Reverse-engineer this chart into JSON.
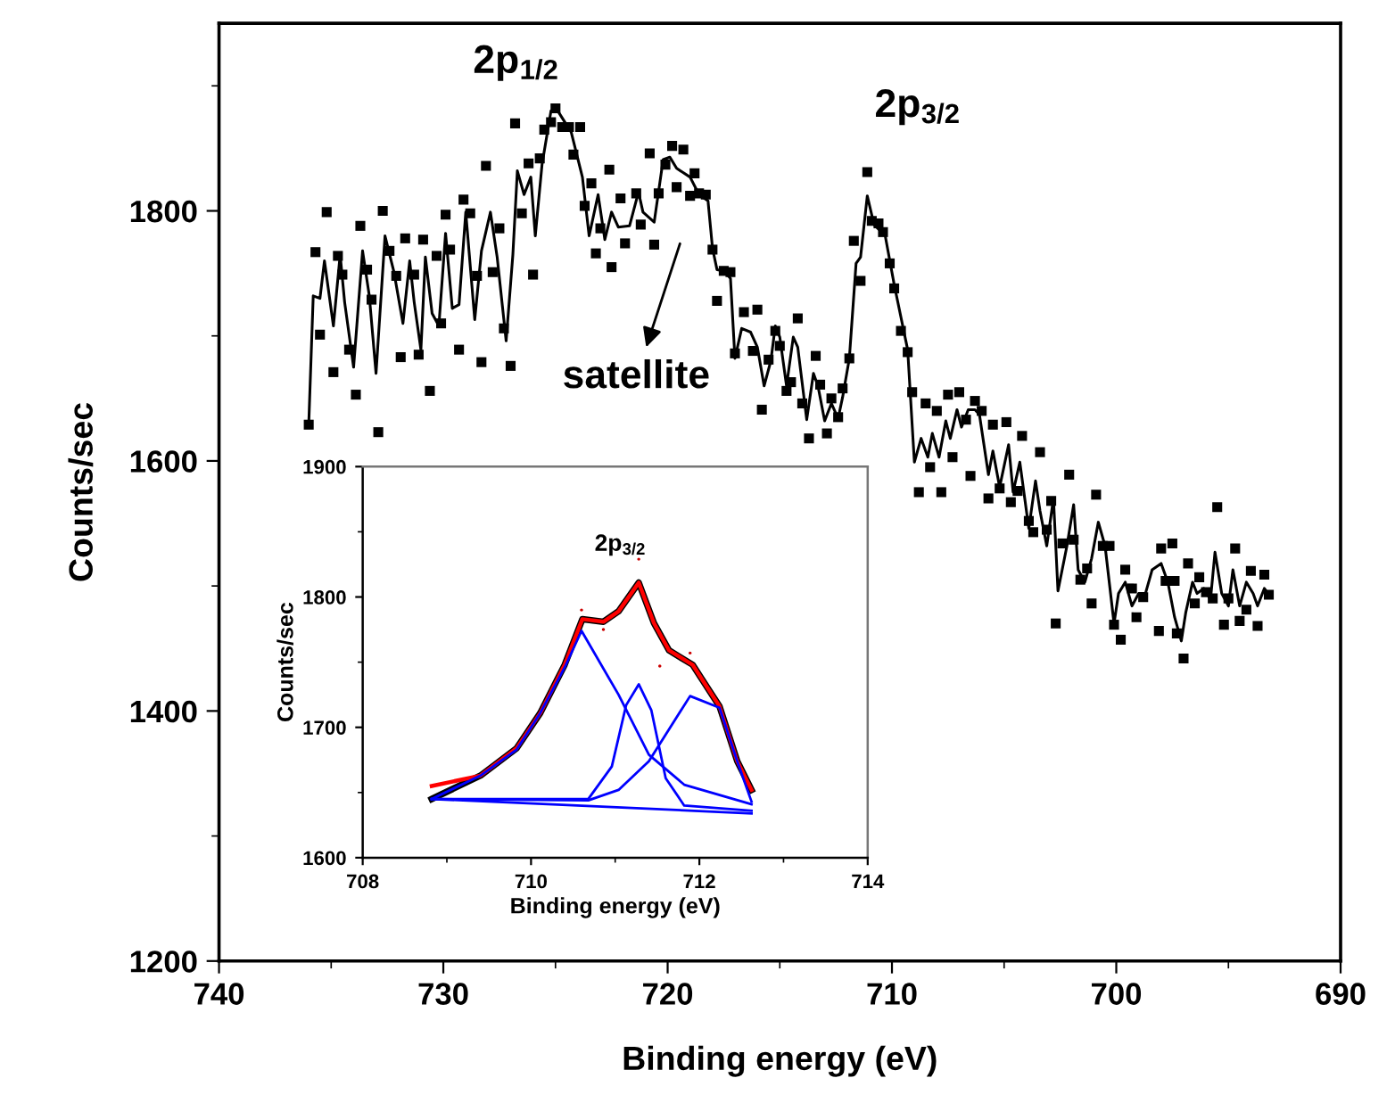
{
  "chart_data": [
    {
      "type": "scatter",
      "xlabel": "Binding energy (eV)",
      "ylabel": "Counts/sec",
      "xlim": [
        740,
        690
      ],
      "xticks": [
        740,
        730,
        720,
        710,
        700,
        690,
        {
          "value": 735,
          "label": null
        },
        {
          "value": 725,
          "label": null
        },
        {
          "value": 715,
          "label": null
        },
        {
          "value": 705,
          "label": null
        },
        {
          "value": 695,
          "label": null
        }
      ],
      "ylim": [
        1200,
        1950
      ],
      "yticks": [
        1200,
        1400,
        1600,
        1800,
        {
          "value": 1300,
          "label": null
        },
        {
          "value": 1500,
          "label": null
        },
        {
          "value": 1700,
          "label": null
        },
        {
          "value": 1900,
          "label": null
        }
      ],
      "grid": false,
      "legend": false,
      "annotations": [
        "2p$_{1/2}$",
        "2p$_{3/2}$",
        "satellite"
      ],
      "series": [
        {
          "marker": "square",
          "color": "#000000",
          "x": [
            736.0,
            735.7,
            735.5,
            735.2,
            734.9,
            734.7,
            734.5,
            734.2,
            733.9,
            733.7,
            733.4,
            733.2,
            732.9,
            732.7,
            732.4,
            732.1,
            731.9,
            731.7,
            731.3,
            731.1,
            730.9,
            730.6,
            730.3,
            730.1,
            729.9,
            729.7,
            729.3,
            729.1,
            728.8,
            728.5,
            728.3,
            728.1,
            727.8,
            727.5,
            727.3,
            727.0,
            726.8,
            726.5,
            726.2,
            726.0,
            725.7,
            725.5,
            725.2,
            725.0,
            724.7,
            724.4,
            724.2,
            723.9,
            723.7,
            723.4,
            723.2,
            723.0,
            722.6,
            722.5,
            722.1,
            721.9,
            721.4,
            721.2,
            720.8,
            720.6,
            720.4,
            720.1,
            719.8,
            719.6,
            719.3,
            719.0,
            718.8,
            718.6,
            718.3,
            718.0,
            717.8,
            717.5,
            717.2,
            717.0,
            716.6,
            716.2,
            716.0,
            715.8,
            715.5,
            715.2,
            715.0,
            714.7,
            714.5,
            714.2,
            714.0,
            713.7,
            713.4,
            713.2,
            712.9,
            712.7,
            712.4,
            712.2,
            711.9,
            711.7,
            711.4,
            711.1,
            710.9,
            710.6,
            710.4,
            710.1,
            709.9,
            709.6,
            709.3,
            709.1,
            708.8,
            708.5,
            708.3,
            708.0,
            707.8,
            707.5,
            707.3,
            707.0,
            706.7,
            706.5,
            706.3,
            706.0,
            705.7,
            705.5,
            705.2,
            704.9,
            704.7,
            704.4,
            704.2,
            703.9,
            703.7,
            703.4,
            703.1,
            702.9,
            702.7,
            702.4,
            702.1,
            701.9,
            701.6,
            701.3,
            701.1,
            700.9,
            700.6,
            700.3,
            700.1,
            699.8,
            699.6,
            699.3,
            699.1,
            698.8,
            698.1,
            698.0,
            697.8,
            697.5,
            697.4,
            697.3,
            697.0,
            696.8,
            696.5,
            696.3,
            696.0,
            695.7,
            695.5,
            695.2,
            695.0,
            694.7,
            694.5,
            694.2,
            694.0,
            693.7,
            693.4,
            693.2
          ],
          "values": [
            1629,
            1767,
            1701,
            1799,
            1671,
            1764,
            1749,
            1689,
            1653,
            1788,
            1753,
            1729,
            1623,
            1800,
            1768,
            1748,
            1683,
            1778,
            1749,
            1685,
            1777,
            1656,
            1764,
            1710,
            1797,
            1769,
            1689,
            1809,
            1798,
            1748,
            1679,
            1836,
            1751,
            1786,
            1706,
            1676,
            1870,
            1798,
            1838,
            1749,
            1842,
            1865,
            1871,
            1882,
            1867,
            1867,
            1845,
            1867,
            1804,
            1822,
            1766,
            1786,
            1833,
            1755,
            1810,
            1774,
            1814,
            1789,
            1846,
            1773,
            1814,
            1837,
            1852,
            1819,
            1849,
            1812,
            1830,
            1814,
            1813,
            1769,
            1728,
            1752,
            1751,
            1686,
            1719,
            1688,
            1721,
            1641,
            1681,
            1704,
            1692,
            1656,
            1663,
            1714,
            1646,
            1618,
            1684,
            1661,
            1622,
            1650,
            1635,
            1658,
            1682,
            1776,
            1744,
            1831,
            1792,
            1790,
            1783,
            1758,
            1738,
            1704,
            1687,
            1655,
            1575,
            1646,
            1595,
            1640,
            1575,
            1653,
            1603,
            1655,
            1633,
            1588,
            1648,
            1640,
            1570,
            1629,
            1578,
            1631,
            1567,
            1576,
            1620,
            1552,
            1543,
            1607,
            1545,
            1568,
            1470,
            1534,
            1589,
            1537,
            1505,
            1514,
            1486,
            1573,
            1532,
            1532,
            1469,
            1457,
            1513,
            1498,
            1475,
            1491,
            1464,
            1530,
            1504,
            1534,
            1504,
            1462,
            1442,
            1518,
            1486,
            1507,
            1495,
            1490,
            1563,
            1469,
            1490,
            1530,
            1472,
            1481,
            1512,
            1468,
            1509,
            1493
          ]
        },
        {
          "type": "line",
          "color": "#000000",
          "x": [
            736.0,
            735.8,
            735.5,
            735.3,
            734.9,
            734.6,
            734.4,
            734.0,
            733.6,
            733.3,
            733.0,
            732.6,
            732.2,
            731.8,
            731.5,
            731.3,
            731.0,
            730.8,
            730.5,
            730.2,
            729.9,
            729.6,
            729.3,
            729.0,
            728.6,
            728.3,
            727.9,
            727.6,
            727.2,
            726.9,
            726.7,
            726.4,
            726.1,
            725.9,
            725.6,
            725.2,
            724.9,
            724.3,
            723.8,
            723.5,
            723.1,
            722.8,
            722.5,
            722.2,
            721.7,
            721.3,
            721.1,
            720.6,
            720.2,
            719.9,
            719.6,
            719.0,
            718.6,
            718.2,
            718.0,
            717.8,
            717.5,
            717.2,
            717.0,
            716.7,
            716.3,
            716.0,
            715.7,
            715.4,
            715.2,
            715.0,
            714.7,
            714.4,
            714.2,
            713.8,
            713.5,
            713.3,
            713.0,
            712.7,
            712.4,
            712.2,
            711.9,
            711.6,
            711.4,
            711.1,
            710.8,
            710.3,
            709.9,
            709.3,
            709.0,
            708.7,
            708.4,
            708.2,
            707.9,
            707.6,
            707.4,
            707.1,
            706.9,
            706.6,
            706.3,
            706.1,
            705.7,
            705.5,
            705.2,
            704.8,
            704.6,
            704.3,
            703.9,
            703.6,
            703.4,
            703.1,
            702.8,
            702.6,
            702.2,
            701.9,
            701.7,
            701.4,
            701.1,
            700.8,
            700.5,
            700.1,
            699.9,
            699.6,
            699.3,
            699.0,
            698.7,
            698.4,
            698.0,
            697.7,
            697.4,
            697.1,
            696.9,
            696.6,
            696.4,
            696.1,
            695.8,
            695.6,
            695.3,
            695.0,
            694.8,
            694.5,
            694.2,
            693.9,
            693.7,
            693.4,
            693.2
          ],
          "values": [
            1629,
            1732,
            1730,
            1760,
            1708,
            1765,
            1727,
            1675,
            1768,
            1732,
            1670,
            1780,
            1751,
            1710,
            1760,
            1727,
            1689,
            1763,
            1718,
            1708,
            1782,
            1722,
            1725,
            1799,
            1713,
            1768,
            1799,
            1763,
            1696,
            1765,
            1832,
            1813,
            1827,
            1780,
            1837,
            1880,
            1880,
            1863,
            1827,
            1780,
            1813,
            1777,
            1799,
            1787,
            1788,
            1815,
            1799,
            1791,
            1841,
            1843,
            1834,
            1827,
            1813,
            1808,
            1770,
            1753,
            1752,
            1746,
            1682,
            1706,
            1703,
            1691,
            1660,
            1680,
            1708,
            1699,
            1660,
            1699,
            1691,
            1633,
            1670,
            1660,
            1632,
            1646,
            1634,
            1651,
            1682,
            1758,
            1763,
            1812,
            1789,
            1780,
            1741,
            1689,
            1599,
            1618,
            1603,
            1622,
            1603,
            1632,
            1618,
            1641,
            1627,
            1641,
            1641,
            1637,
            1589,
            1608,
            1579,
            1613,
            1575,
            1599,
            1546,
            1584,
            1560,
            1532,
            1570,
            1496,
            1532,
            1565,
            1513,
            1503,
            1522,
            1551,
            1532,
            1470,
            1494,
            1503,
            1484,
            1494,
            1494,
            1513,
            1518,
            1503,
            1475,
            1456,
            1479,
            1503,
            1494,
            1498,
            1489,
            1527,
            1494,
            1484,
            1513,
            1484,
            1503,
            1494,
            1484,
            1498,
            1493
          ]
        }
      ]
    },
    {
      "type": "line",
      "xlabel": "Binding energy (eV)",
      "ylabel": "Counts/sec",
      "xlim": [
        708,
        714
      ],
      "xticks": [
        708,
        710,
        712,
        714,
        {
          "value": 709,
          "label": null
        },
        {
          "value": 711,
          "label": null
        },
        {
          "value": 713,
          "label": null
        }
      ],
      "ylim": [
        1600,
        1900
      ],
      "yticks": [
        1600,
        1700,
        1800,
        1900,
        {
          "value": 1650,
          "label": null
        },
        {
          "value": 1750,
          "label": null
        },
        {
          "value": 1850,
          "label": null
        }
      ],
      "grid": false,
      "legend": false,
      "annotations": [
        "2p$_{3/2}$"
      ],
      "series": [
        {
          "color": "#000000",
          "x": [
            708.82,
            709.4,
            709.83,
            710.11,
            710.4,
            710.61,
            710.86,
            711.04,
            711.28,
            711.46,
            711.64,
            711.92,
            712.24,
            712.45,
            712.62
          ],
          "values": [
            1645,
            1663,
            1684,
            1711,
            1748,
            1783,
            1781,
            1789,
            1811,
            1780,
            1759,
            1748,
            1716,
            1674,
            1652
          ]
        },
        {
          "color": "#ff0000",
          "x": [
            708.82,
            709.4,
            709.83,
            710.11,
            710.4,
            710.61,
            710.86,
            711.04,
            711.28,
            711.46,
            711.64,
            711.92,
            712.24,
            712.45,
            712.62
          ],
          "values": [
            1655,
            1663,
            1684,
            1711,
            1748,
            1783,
            1781,
            1789,
            1811,
            1780,
            1759,
            1748,
            1716,
            1674,
            1652
          ]
        },
        {
          "color": "#0000ff",
          "x": [
            708.82,
            709.4,
            709.83,
            710.11,
            710.4,
            710.6,
            711.04,
            711.4,
            711.82,
            712.62
          ],
          "values": [
            1645,
            1663,
            1683,
            1711,
            1746,
            1774,
            1725,
            1679,
            1656,
            1641
          ]
        },
        {
          "color": "#0000ff",
          "x": [
            708.82,
            710.68,
            710.96,
            711.13,
            711.28,
            711.43,
            711.6,
            711.82,
            712.62
          ],
          "values": [
            1645,
            1645,
            1670,
            1717,
            1733,
            1713,
            1661,
            1640,
            1636
          ]
        },
        {
          "color": "#0000ff",
          "x": [
            708.82,
            710.68,
            711.04,
            711.4,
            711.89,
            712.24,
            712.45,
            712.62
          ],
          "values": [
            1645,
            1644,
            1652,
            1674,
            1724,
            1715,
            1674,
            1643
          ]
        },
        {
          "color": "#0000ff",
          "x": [
            708.82,
            712.62
          ],
          "values": [
            1645,
            1634
          ]
        },
        {
          "type": "scatter",
          "marker": "circle",
          "color": "#cc0000",
          "x": [
            710.6,
            710.86,
            711.28,
            711.53,
            711.89
          ],
          "values": [
            1790,
            1775,
            1829,
            1747,
            1757
          ]
        }
      ]
    }
  ]
}
